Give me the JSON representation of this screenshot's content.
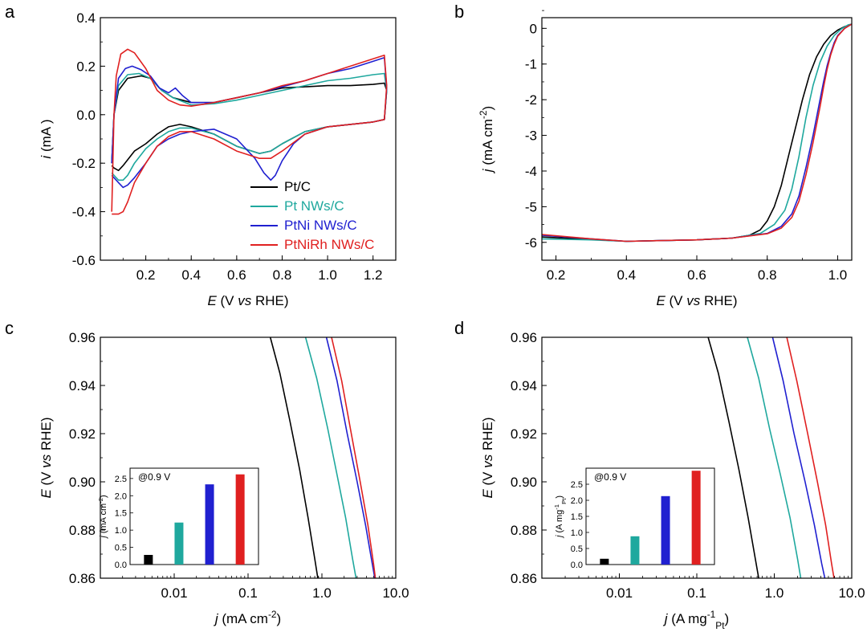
{
  "figure": {
    "series_names": [
      "Pt/C",
      "Pt NWs/C",
      "PtNi NWs/C",
      "PtNiRh NWs/C"
    ],
    "colors": {
      "Pt/C": "#000000",
      "Pt NWs/C": "#1fa89e",
      "PtNi NWs/C": "#2020d0",
      "PtNiRh NWs/C": "#e02020"
    }
  },
  "chart_data": [
    {
      "panel": "a",
      "type": "line",
      "xlabel_main": "E",
      "xlabel_rest": " (V vs RHE)",
      "ylabel_main": "i",
      "ylabel_rest": " (mA )",
      "xlim": [
        0.0,
        1.3
      ],
      "ylim": [
        -0.6,
        0.4
      ],
      "xticks": [
        0.2,
        0.4,
        0.6,
        0.8,
        1.0,
        1.2
      ],
      "yticks": [
        -0.6,
        -0.4,
        -0.2,
        0.0,
        0.2,
        0.4
      ],
      "xtick_labels": [
        "0.2",
        "0.4",
        "0.6",
        "0.8",
        "1.0",
        "1.2"
      ],
      "ytick_labels": [
        "-0.6",
        "-0.4",
        "-0.2",
        "0.0",
        "0.2",
        "0.4"
      ],
      "legend": [
        "Pt/C",
        "Pt NWs/C",
        "PtNi NWs/C",
        "PtNiRh NWs/C"
      ],
      "legend_position": "bottom-right",
      "series": [
        {
          "name": "Pt/C",
          "x": [
            0.05,
            0.06,
            0.08,
            0.12,
            0.18,
            0.22,
            0.27,
            0.32,
            0.4,
            0.5,
            0.6,
            0.7,
            0.8,
            0.9,
            1.0,
            1.1,
            1.2,
            1.25,
            1.26,
            1.25,
            1.2,
            1.1,
            1.0,
            0.9,
            0.8,
            0.75,
            0.7,
            0.6,
            0.5,
            0.4,
            0.35,
            0.3,
            0.25,
            0.2,
            0.15,
            0.1,
            0.08,
            0.06,
            0.05
          ],
          "y": [
            -0.2,
            0.0,
            0.1,
            0.15,
            0.16,
            0.15,
            0.1,
            0.07,
            0.05,
            0.05,
            0.07,
            0.09,
            0.11,
            0.115,
            0.12,
            0.12,
            0.125,
            0.13,
            0.1,
            -0.02,
            -0.03,
            -0.04,
            -0.05,
            -0.07,
            -0.12,
            -0.15,
            -0.16,
            -0.13,
            -0.08,
            -0.05,
            -0.04,
            -0.05,
            -0.08,
            -0.12,
            -0.15,
            -0.21,
            -0.23,
            -0.22,
            -0.21
          ]
        },
        {
          "name": "Pt NWs/C",
          "x": [
            0.05,
            0.06,
            0.08,
            0.12,
            0.17,
            0.22,
            0.27,
            0.32,
            0.4,
            0.5,
            0.6,
            0.7,
            0.8,
            0.9,
            1.0,
            1.1,
            1.2,
            1.25,
            1.26,
            1.25,
            1.2,
            1.1,
            1.0,
            0.9,
            0.8,
            0.75,
            0.7,
            0.6,
            0.5,
            0.4,
            0.35,
            0.3,
            0.25,
            0.2,
            0.15,
            0.12,
            0.1,
            0.08,
            0.06,
            0.05
          ],
          "y": [
            -0.2,
            0.0,
            0.12,
            0.165,
            0.17,
            0.15,
            0.1,
            0.07,
            0.04,
            0.045,
            0.06,
            0.08,
            0.1,
            0.12,
            0.14,
            0.15,
            0.165,
            0.17,
            0.1,
            -0.02,
            -0.03,
            -0.04,
            -0.05,
            -0.07,
            -0.12,
            -0.15,
            -0.16,
            -0.13,
            -0.08,
            -0.055,
            -0.055,
            -0.07,
            -0.1,
            -0.14,
            -0.2,
            -0.25,
            -0.27,
            -0.27,
            -0.25,
            -0.24
          ]
        },
        {
          "name": "PtNi NWs/C",
          "x": [
            0.05,
            0.06,
            0.08,
            0.11,
            0.14,
            0.18,
            0.22,
            0.26,
            0.3,
            0.33,
            0.36,
            0.4,
            0.5,
            0.6,
            0.7,
            0.8,
            0.9,
            1.0,
            1.1,
            1.2,
            1.25,
            1.26,
            1.25,
            1.2,
            1.1,
            1.0,
            0.9,
            0.85,
            0.8,
            0.77,
            0.75,
            0.72,
            0.68,
            0.6,
            0.5,
            0.4,
            0.35,
            0.3,
            0.25,
            0.2,
            0.15,
            0.12,
            0.1,
            0.08,
            0.06,
            0.05
          ],
          "y": [
            -0.2,
            0.0,
            0.15,
            0.19,
            0.2,
            0.185,
            0.16,
            0.11,
            0.09,
            0.11,
            0.08,
            0.05,
            0.05,
            0.07,
            0.09,
            0.115,
            0.14,
            0.17,
            0.19,
            0.22,
            0.235,
            0.11,
            -0.02,
            -0.03,
            -0.04,
            -0.05,
            -0.08,
            -0.12,
            -0.19,
            -0.25,
            -0.27,
            -0.24,
            -0.18,
            -0.1,
            -0.06,
            -0.07,
            -0.08,
            -0.1,
            -0.13,
            -0.2,
            -0.26,
            -0.29,
            -0.3,
            -0.28,
            -0.26,
            -0.25
          ]
        },
        {
          "name": "PtNiRh NWs/C",
          "x": [
            0.05,
            0.06,
            0.07,
            0.09,
            0.12,
            0.15,
            0.2,
            0.25,
            0.3,
            0.35,
            0.4,
            0.5,
            0.6,
            0.7,
            0.8,
            0.9,
            1.0,
            1.1,
            1.2,
            1.25,
            1.26,
            1.25,
            1.2,
            1.1,
            1.0,
            0.9,
            0.8,
            0.75,
            0.7,
            0.6,
            0.5,
            0.4,
            0.35,
            0.3,
            0.25,
            0.2,
            0.15,
            0.12,
            0.1,
            0.08,
            0.06,
            0.05
          ],
          "y": [
            -0.4,
            0.0,
            0.16,
            0.25,
            0.27,
            0.255,
            0.19,
            0.1,
            0.06,
            0.04,
            0.035,
            0.05,
            0.07,
            0.09,
            0.12,
            0.14,
            0.17,
            0.2,
            0.23,
            0.245,
            0.12,
            -0.02,
            -0.03,
            -0.04,
            -0.05,
            -0.08,
            -0.15,
            -0.18,
            -0.18,
            -0.15,
            -0.1,
            -0.07,
            -0.07,
            -0.09,
            -0.13,
            -0.2,
            -0.28,
            -0.36,
            -0.4,
            -0.41,
            -0.41,
            -0.41
          ]
        }
      ]
    },
    {
      "panel": "b",
      "type": "line",
      "xlabel_main": "E",
      "xlabel_rest": " (V vs RHE)",
      "ylabel_main": "j",
      "ylabel_rest": " (mA cm",
      "ylabel_sup": "-2",
      "ylabel_end": ")",
      "xlim": [
        0.16,
        1.04
      ],
      "ylim": [
        -6.5,
        0.3
      ],
      "xticks": [
        0.2,
        0.4,
        0.6,
        0.8,
        1.0
      ],
      "yticks": [
        -6,
        -5,
        -4,
        -3,
        -2,
        -1,
        0
      ],
      "xtick_labels": [
        "0.2",
        "0.4",
        "0.6",
        "0.8",
        "1.0"
      ],
      "ytick_labels": [
        "-6",
        "-5",
        "-4",
        "-3",
        "-2",
        "-1",
        "0"
      ],
      "series": [
        {
          "name": "Pt/C",
          "x": [
            0.16,
            0.3,
            0.4,
            0.5,
            0.6,
            0.7,
            0.75,
            0.78,
            0.8,
            0.82,
            0.84,
            0.86,
            0.88,
            0.9,
            0.92,
            0.94,
            0.96,
            0.98,
            1.0,
            1.02,
            1.04
          ],
          "y": [
            -5.85,
            -5.92,
            -5.97,
            -5.95,
            -5.93,
            -5.88,
            -5.8,
            -5.65,
            -5.4,
            -5.0,
            -4.4,
            -3.6,
            -2.8,
            -2.0,
            -1.3,
            -0.8,
            -0.45,
            -0.2,
            -0.05,
            0.05,
            0.12
          ]
        },
        {
          "name": "Pt NWs/C",
          "x": [
            0.16,
            0.3,
            0.4,
            0.5,
            0.6,
            0.7,
            0.78,
            0.82,
            0.85,
            0.87,
            0.89,
            0.91,
            0.93,
            0.95,
            0.97,
            0.99,
            1.01,
            1.03,
            1.04
          ],
          "y": [
            -5.9,
            -5.93,
            -5.97,
            -5.95,
            -5.93,
            -5.88,
            -5.75,
            -5.5,
            -5.1,
            -4.5,
            -3.6,
            -2.5,
            -1.6,
            -0.95,
            -0.5,
            -0.2,
            -0.02,
            0.1,
            0.12
          ]
        },
        {
          "name": "PtNi NWs/C",
          "x": [
            0.16,
            0.3,
            0.4,
            0.5,
            0.6,
            0.7,
            0.8,
            0.84,
            0.87,
            0.89,
            0.91,
            0.93,
            0.95,
            0.96,
            0.97,
            0.98,
            0.99,
            1.0,
            1.02,
            1.04
          ],
          "y": [
            -5.8,
            -5.9,
            -5.97,
            -5.95,
            -5.93,
            -5.88,
            -5.75,
            -5.55,
            -5.2,
            -4.7,
            -3.9,
            -3.0,
            -2.0,
            -1.5,
            -1.05,
            -0.7,
            -0.4,
            -0.2,
            0.0,
            0.12
          ]
        },
        {
          "name": "PtNiRh NWs/C",
          "x": [
            0.16,
            0.3,
            0.4,
            0.5,
            0.6,
            0.7,
            0.8,
            0.84,
            0.87,
            0.89,
            0.91,
            0.93,
            0.95,
            0.96,
            0.97,
            0.98,
            0.99,
            1.0,
            1.02,
            1.04
          ],
          "y": [
            -5.78,
            -5.9,
            -5.97,
            -5.95,
            -5.93,
            -5.88,
            -5.76,
            -5.6,
            -5.3,
            -4.85,
            -4.1,
            -3.2,
            -2.2,
            -1.65,
            -1.15,
            -0.75,
            -0.45,
            -0.22,
            0.0,
            0.12
          ]
        }
      ]
    },
    {
      "panel": "c",
      "type": "line",
      "xscale": "log",
      "xlabel_main": "j",
      "xlabel_rest": " (mA cm",
      "xlabel_sup": "-2",
      "xlabel_end": ")",
      "ylabel_main": "E",
      "ylabel_rest": " (V vs RHE)",
      "xlim": [
        0.001,
        10
      ],
      "ylim": [
        0.86,
        0.96
      ],
      "xticks": [
        0.01,
        0.1,
        1.0,
        10.0
      ],
      "yticks": [
        0.86,
        0.88,
        0.9,
        0.92,
        0.94,
        0.96
      ],
      "xtick_labels": [
        "0.01",
        "0.1",
        "1.0",
        "10.0"
      ],
      "ytick_labels": [
        "0.86",
        "0.88",
        "0.90",
        "0.92",
        "0.94",
        "0.96"
      ],
      "series": [
        {
          "name": "Pt/C",
          "x": [
            0.2,
            0.27,
            0.37,
            0.5,
            0.65,
            0.8,
            0.88
          ],
          "y": [
            0.96,
            0.945,
            0.925,
            0.905,
            0.885,
            0.868,
            0.86
          ]
        },
        {
          "name": "Pt NWs/C",
          "x": [
            0.6,
            0.85,
            1.2,
            1.6,
            2.1,
            2.6,
            2.9
          ],
          "y": [
            0.96,
            0.943,
            0.922,
            0.903,
            0.885,
            0.868,
            0.86
          ]
        },
        {
          "name": "PtNi NWs/C",
          "x": [
            1.15,
            1.6,
            2.2,
            3.0,
            3.9,
            4.8,
            5.2
          ],
          "y": [
            0.96,
            0.942,
            0.92,
            0.9,
            0.882,
            0.866,
            0.86
          ]
        },
        {
          "name": "PtNiRh NWs/C",
          "x": [
            1.35,
            1.85,
            2.5,
            3.3,
            4.2,
            5.0,
            5.3
          ],
          "y": [
            0.96,
            0.942,
            0.92,
            0.9,
            0.882,
            0.866,
            0.86
          ]
        }
      ],
      "inset": {
        "type": "bar",
        "note": "@0.9 V",
        "ylabel_main": "j",
        "ylabel_rest": " (mA cm",
        "ylabel_sup": "-2",
        "ylabel_end": ")",
        "ylim": [
          0,
          2.8
        ],
        "yticks": [
          0.0,
          0.5,
          1.0,
          1.5,
          2.0,
          2.5
        ],
        "ytick_labels": [
          "0.0",
          "0.5",
          "1.0",
          "1.5",
          "2.0",
          "2.5"
        ],
        "categories": [
          "Pt/C",
          "Pt NWs/C",
          "PtNi NWs/C",
          "PtNiRh NWs/C"
        ],
        "values": [
          0.28,
          1.22,
          2.33,
          2.62
        ]
      }
    },
    {
      "panel": "d",
      "type": "line",
      "xscale": "log",
      "xlabel_main": "j",
      "xlabel_rest": " (A mg",
      "xlabel_sup": "-1",
      "xlabel_sub": "Pt",
      "xlabel_end": ")",
      "ylabel_main": "E",
      "ylabel_rest": " (V vs RHE)",
      "xlim": [
        0.001,
        10
      ],
      "ylim": [
        0.86,
        0.96
      ],
      "xticks": [
        0.01,
        0.1,
        1.0,
        10.0
      ],
      "yticks": [
        0.86,
        0.88,
        0.9,
        0.92,
        0.94,
        0.96
      ],
      "xtick_labels": [
        "0.01",
        "0.1",
        "1.0",
        "10.0"
      ],
      "ytick_labels": [
        "0.86",
        "0.88",
        "0.90",
        "0.92",
        "0.94",
        "0.96"
      ],
      "series": [
        {
          "name": "Pt/C",
          "x": [
            0.14,
            0.19,
            0.26,
            0.35,
            0.46,
            0.57,
            0.63
          ],
          "y": [
            0.96,
            0.945,
            0.925,
            0.905,
            0.885,
            0.868,
            0.86
          ]
        },
        {
          "name": "Pt NWs/C",
          "x": [
            0.45,
            0.63,
            0.87,
            1.2,
            1.6,
            2.0,
            2.2
          ],
          "y": [
            0.96,
            0.943,
            0.922,
            0.903,
            0.885,
            0.868,
            0.86
          ]
        },
        {
          "name": "PtNi NWs/C",
          "x": [
            0.95,
            1.3,
            1.8,
            2.5,
            3.3,
            4.1,
            4.5
          ],
          "y": [
            0.96,
            0.942,
            0.92,
            0.9,
            0.882,
            0.866,
            0.86
          ]
        },
        {
          "name": "PtNiRh NWs/C",
          "x": [
            1.45,
            1.95,
            2.7,
            3.6,
            4.6,
            5.5,
            5.9
          ],
          "y": [
            0.96,
            0.942,
            0.92,
            0.9,
            0.882,
            0.866,
            0.86
          ]
        }
      ],
      "inset": {
        "type": "bar",
        "note": "@0.9 V",
        "ylabel_main": "j",
        "ylabel_rest": " (A mg",
        "ylabel_sup": "-1",
        "ylabel_sub": "Pt",
        "ylabel_end": ")",
        "ylim": [
          0,
          3.0
        ],
        "yticks": [
          0.0,
          0.5,
          1.0,
          1.5,
          2.0,
          2.5
        ],
        "ytick_labels": [
          "0.0",
          "0.5",
          "1.0",
          "1.5",
          "2.0",
          "2.5"
        ],
        "categories": [
          "Pt/C",
          "Pt NWs/C",
          "PtNi NWs/C",
          "PtNiRh NWs/C"
        ],
        "values": [
          0.18,
          0.88,
          2.13,
          2.92
        ]
      }
    }
  ]
}
